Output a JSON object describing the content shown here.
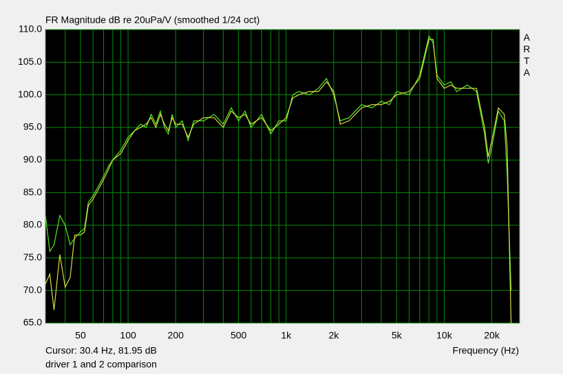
{
  "chart_data": {
    "type": "line",
    "title": "FR Magnitude dB re 20uPa/V (smoothed 1/24 oct)",
    "brand": "ARTA",
    "x_label": "Frequency (Hz)",
    "cursor": "Cursor: 30.4 Hz, 81.95 dB",
    "caption": "driver 1 and 2 comparison",
    "x_log": true,
    "grid": true,
    "xlim": [
      30,
      30000
    ],
    "ylim": [
      65,
      110
    ],
    "xticks": [
      50,
      100,
      200,
      500,
      {
        "value": 1000,
        "label": "1k"
      },
      {
        "value": 2000,
        "label": "2k"
      },
      {
        "value": 5000,
        "label": "5k"
      },
      {
        "value": 10000,
        "label": "10k"
      },
      {
        "value": 20000,
        "label": "20k"
      }
    ],
    "xminor": [
      40,
      60,
      70,
      80,
      90,
      300,
      400,
      600,
      700,
      800,
      900,
      3000,
      4000,
      6000,
      7000,
      8000,
      9000
    ],
    "yticks": [
      {
        "value": 65,
        "label": "65.0"
      },
      {
        "value": 70,
        "label": "70.0"
      },
      {
        "value": 75,
        "label": "75.0"
      },
      {
        "value": 80,
        "label": "80.0"
      },
      {
        "value": 85,
        "label": "85.0"
      },
      {
        "value": 90,
        "label": "90.0"
      },
      {
        "value": 95,
        "label": "95.0"
      },
      {
        "value": 100,
        "label": "100.0"
      },
      {
        "value": 105,
        "label": "105.0"
      },
      {
        "value": 110,
        "label": "110.0"
      }
    ],
    "x": [
      30,
      32,
      34,
      37,
      40,
      43,
      46,
      50,
      53,
      56,
      60,
      65,
      70,
      75,
      80,
      90,
      100,
      110,
      120,
      130,
      140,
      150,
      160,
      170,
      180,
      190,
      200,
      220,
      240,
      260,
      300,
      350,
      400,
      450,
      500,
      550,
      600,
      700,
      800,
      900,
      1000,
      1100,
      1200,
      1400,
      1600,
      1800,
      2000,
      2200,
      2500,
      3000,
      3500,
      4000,
      4500,
      5000,
      6000,
      7000,
      8000,
      8500,
      9000,
      10000,
      11000,
      12000,
      14000,
      16000,
      18000,
      19000,
      20000,
      22000,
      24000,
      25000,
      26500
    ],
    "series": [
      {
        "name": "driver 1",
        "color": "#55ee22",
        "values": [
          81.5,
          76,
          77,
          81.5,
          80,
          77,
          78,
          79,
          79.5,
          83.5,
          84.5,
          86,
          87.5,
          89,
          90,
          91.5,
          93.5,
          94.5,
          95.5,
          95,
          97,
          95.5,
          97.5,
          95,
          94,
          97,
          95,
          96,
          93,
          96,
          96,
          97,
          95.5,
          98,
          96,
          97.5,
          95,
          97,
          94,
          96,
          96,
          100,
          100.5,
          100,
          101,
          102.5,
          100,
          96,
          96.5,
          98.5,
          98,
          99,
          98.5,
          100.5,
          100,
          103,
          109,
          108,
          103,
          101.5,
          102,
          100.5,
          101.5,
          100.5,
          94,
          89.5,
          92,
          97.5,
          96,
          88,
          70
        ]
      },
      {
        "name": "driver 2",
        "color": "#dddd44",
        "values": [
          71,
          72.5,
          67,
          75.5,
          70.5,
          72,
          78.5,
          78.5,
          79,
          83,
          84,
          85.5,
          87,
          88.5,
          90,
          91,
          93,
          94.5,
          95,
          95.5,
          96.5,
          95,
          97,
          95.5,
          94.5,
          96.5,
          95.5,
          95.5,
          93.5,
          95.5,
          96.5,
          96.5,
          95,
          97.5,
          96.5,
          97,
          95.5,
          96.5,
          94.5,
          95.5,
          96.5,
          99.5,
          100,
          100.5,
          100.5,
          102,
          100.5,
          95.5,
          96,
          98,
          98.5,
          98.5,
          99,
          100,
          100.5,
          102.5,
          108.5,
          108.5,
          102.5,
          101,
          101.5,
          101,
          101,
          101,
          95,
          90.5,
          93,
          98,
          97,
          92,
          65
        ]
      }
    ]
  }
}
